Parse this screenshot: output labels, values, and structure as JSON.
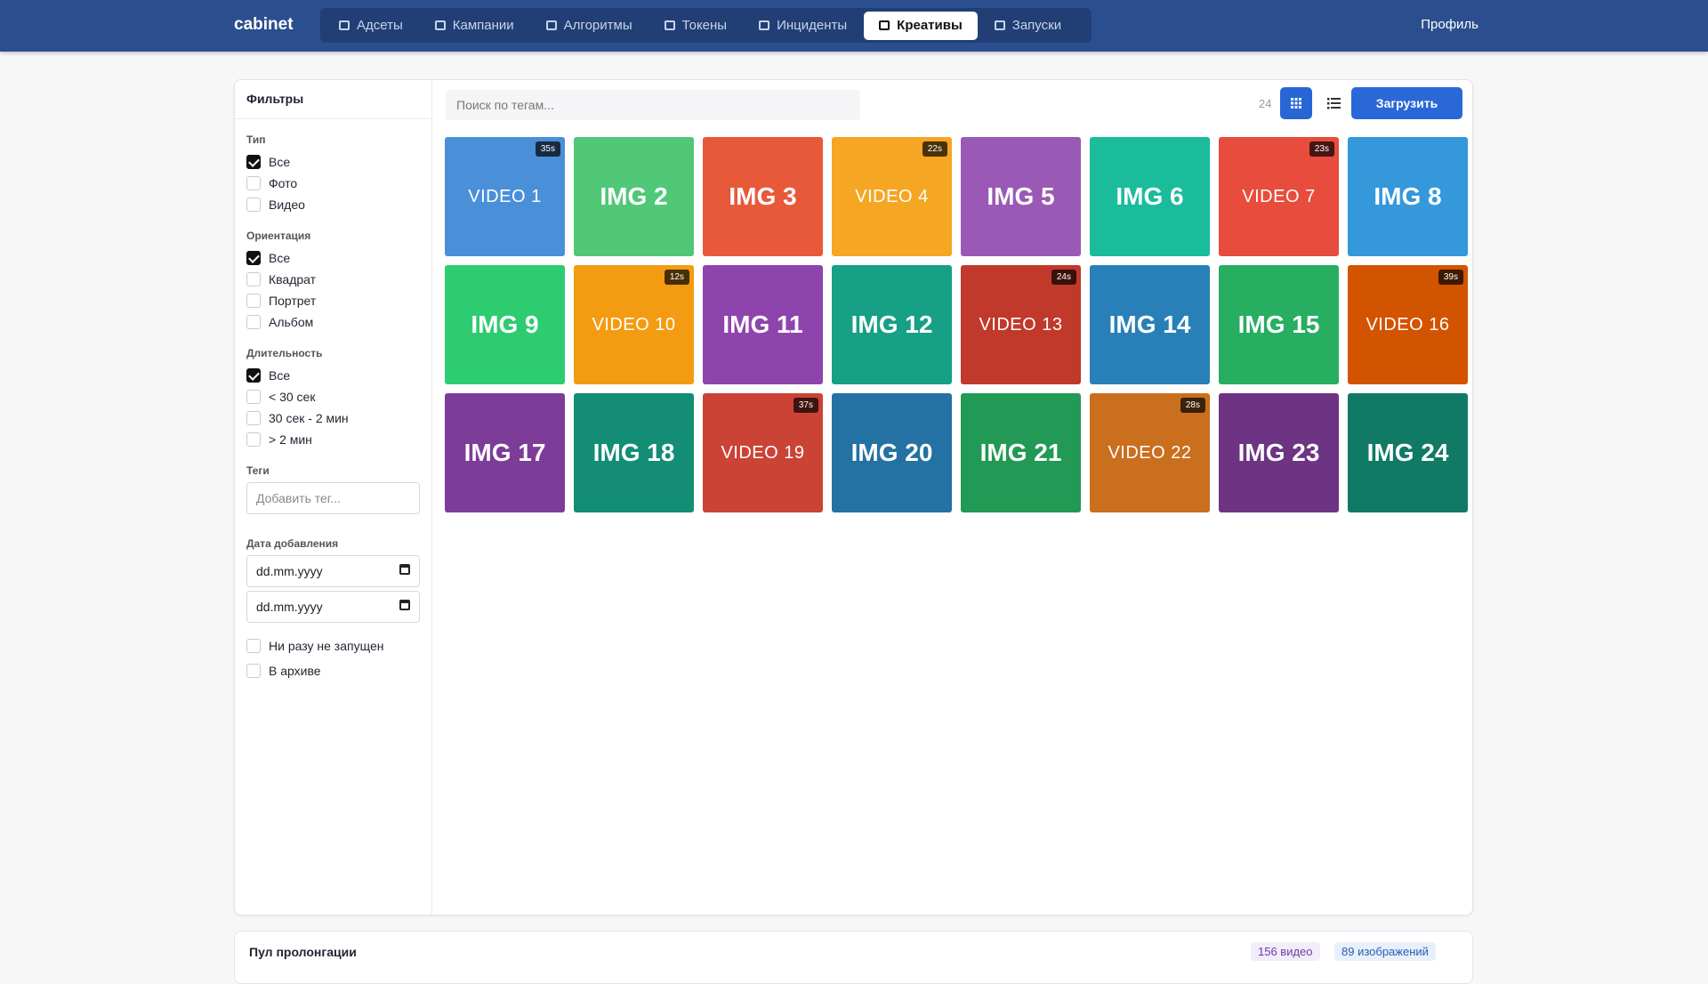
{
  "nav": {
    "brand": "cabinet",
    "items": [
      "Адсеты",
      "Кампании",
      "Алгоритмы",
      "Токены",
      "Инциденты",
      "Креативы",
      "Запуски"
    ],
    "active": 5,
    "profile": "Профиль"
  },
  "filters": {
    "title": "Фильтры",
    "groups": [
      {
        "label": "Тип",
        "options": [
          {
            "text": "Все",
            "checked": true
          },
          {
            "text": "Фото",
            "checked": false
          },
          {
            "text": "Видео",
            "checked": false
          }
        ]
      },
      {
        "label": "Ориентация",
        "options": [
          {
            "text": "Все",
            "checked": true
          },
          {
            "text": "Квадрат",
            "checked": false
          },
          {
            "text": "Портрет",
            "checked": false
          },
          {
            "text": "Альбом",
            "checked": false
          }
        ]
      },
      {
        "label": "Длительность",
        "options": [
          {
            "text": "Все",
            "checked": true
          },
          {
            "text": "< 30 сек",
            "checked": false
          },
          {
            "text": "30 сек - 2 мин",
            "checked": false
          },
          {
            "text": "> 2 мин",
            "checked": false
          }
        ]
      }
    ],
    "tags_label": "Теги",
    "tags_placeholder": "Добавить тег...",
    "date_label": "Дата добавления",
    "date_from": "dd.mm.yyyy",
    "date_to": "dd.mm.yyyy",
    "extra": [
      {
        "text": "Ни разу не запущен",
        "checked": false
      },
      {
        "text": "В архиве",
        "checked": false
      }
    ]
  },
  "toolbar": {
    "search_placeholder": "Поиск по тегам...",
    "count": 24,
    "upload": "Загрузить"
  },
  "tiles": [
    {
      "label": "VIDEO 1",
      "duration": "35s",
      "color": "#4a90d9"
    },
    {
      "label": "IMG 2",
      "color": "#50c878"
    },
    {
      "label": "IMG 3",
      "color": "#e8593a"
    },
    {
      "label": "VIDEO 4",
      "duration": "22s",
      "color": "#f5a623"
    },
    {
      "label": "IMG 5",
      "color": "#9b59b6"
    },
    {
      "label": "IMG 6",
      "color": "#1abc9c"
    },
    {
      "label": "VIDEO 7",
      "duration": "23s",
      "color": "#e74c3c"
    },
    {
      "label": "IMG 8",
      "color": "#3498db"
    },
    {
      "label": "IMG 9",
      "color": "#2ecc71"
    },
    {
      "label": "VIDEO 10",
      "duration": "12s",
      "color": "#f39c12"
    },
    {
      "label": "IMG 11",
      "color": "#8e44ad"
    },
    {
      "label": "IMG 12",
      "color": "#16a085"
    },
    {
      "label": "VIDEO 13",
      "duration": "24s",
      "color": "#c0392b"
    },
    {
      "label": "IMG 14",
      "color": "#2980b9"
    },
    {
      "label": "IMG 15",
      "color": "#27ae60"
    },
    {
      "label": "VIDEO 16",
      "duration": "39s",
      "color": "#d35400"
    },
    {
      "label": "IMG 17",
      "color": "#7d3c98"
    },
    {
      "label": "IMG 18",
      "color": "#138d75"
    },
    {
      "label": "VIDEO 19",
      "duration": "37s",
      "color": "#cb4335"
    },
    {
      "label": "IMG 20",
      "color": "#2471a3"
    },
    {
      "label": "IMG 21",
      "color": "#229954"
    },
    {
      "label": "VIDEO 22",
      "duration": "28s",
      "color": "#ca6f1e"
    },
    {
      "label": "IMG 23",
      "color": "#6c3483"
    },
    {
      "label": "IMG 24",
      "color": "#117a65"
    }
  ],
  "pool": {
    "title": "Пул пролонгации",
    "videos": "156 видео",
    "images": "89 изображений"
  }
}
